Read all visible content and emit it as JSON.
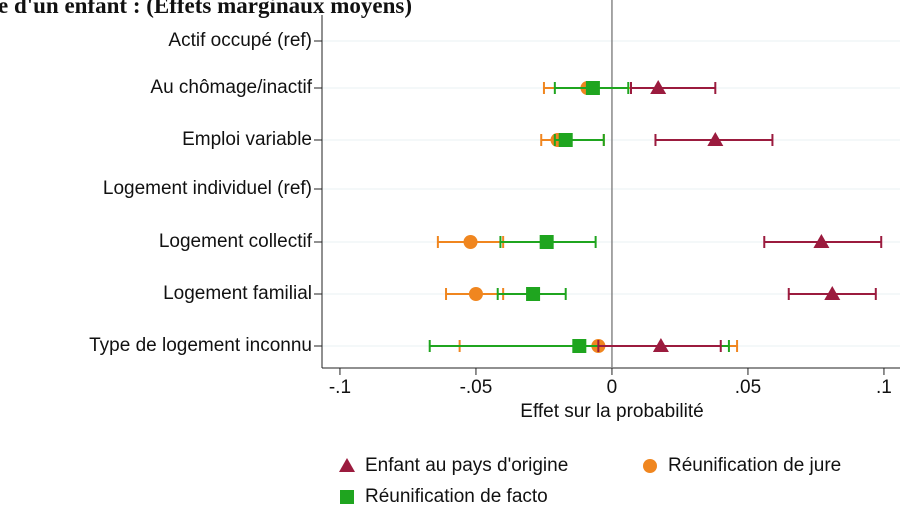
{
  "chart_data": {
    "type": "coefplot",
    "title": "e d'un enfant : (Effets marginaux moyens)",
    "x_label": "Effet sur la probabilité",
    "categories": [
      "Actif occupé (ref)",
      "Au chômage/inactif",
      "Emploi variable",
      "Logement individuel (ref)",
      "Logement collectif",
      "Logement familial",
      "Type de logement inconnu"
    ],
    "series": [
      {
        "name": "Enfant au pays d'origine",
        "color": "#9b1b3e",
        "marker": "triangle",
        "values": [
          null,
          0.017,
          0.038,
          null,
          0.077,
          0.081,
          0.018
        ],
        "ci_low": [
          null,
          0.007,
          0.016,
          null,
          0.056,
          0.065,
          -0.005
        ],
        "ci_high": [
          null,
          0.038,
          0.059,
          null,
          0.099,
          0.097,
          0.04
        ]
      },
      {
        "name": "Réunification de jure",
        "color": "#f0861f",
        "marker": "circle",
        "values": [
          null,
          -0.009,
          -0.02,
          null,
          -0.052,
          -0.05,
          -0.005
        ],
        "ci_low": [
          null,
          -0.025,
          -0.026,
          null,
          -0.064,
          -0.061,
          -0.056
        ],
        "ci_high": [
          null,
          0.007,
          -0.003,
          null,
          -0.04,
          -0.04,
          0.046
        ]
      },
      {
        "name": "Réunification de facto",
        "color": "#1fa51f",
        "marker": "square",
        "values": [
          null,
          -0.007,
          -0.017,
          null,
          -0.024,
          -0.029,
          -0.012
        ],
        "ci_low": [
          null,
          -0.021,
          -0.021,
          null,
          -0.041,
          -0.042,
          -0.067
        ],
        "ci_high": [
          null,
          0.006,
          -0.003,
          null,
          -0.006,
          -0.017,
          0.043
        ]
      }
    ],
    "xlim": [
      -0.1066,
      0.1059
    ],
    "xticks": [
      {
        "value": -0.1,
        "label": "-.1"
      },
      {
        "value": -0.05,
        "label": "-.05"
      },
      0,
      {
        "value": 0.05,
        "label": ".05"
      },
      {
        "value": 0.1,
        "label": ".1"
      }
    ],
    "reference_line": 0,
    "grid": true,
    "legend": "bottom"
  }
}
